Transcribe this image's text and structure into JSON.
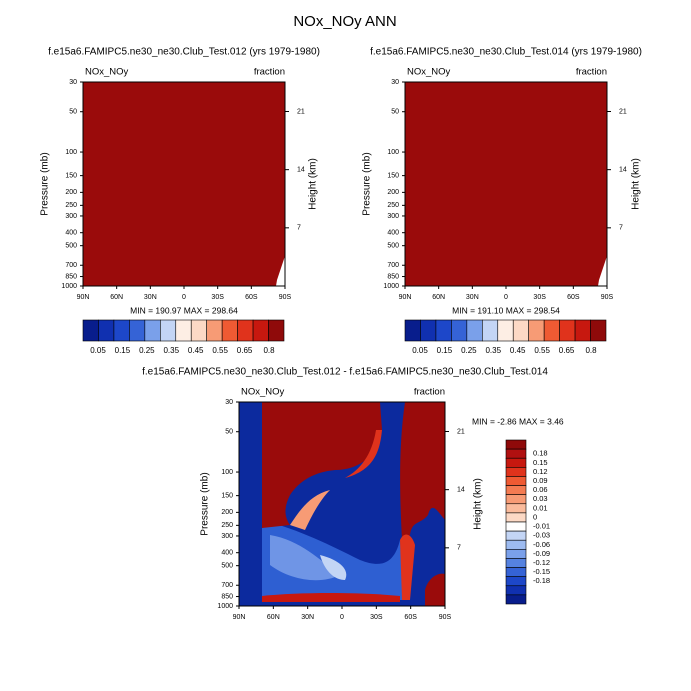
{
  "title": "NOx_NOy ANN",
  "chart_data": [
    {
      "type": "contour",
      "title": "f.e15a6.FAMIPC5.ne30_ne30.Club_Test.012 (yrs 1979-1980)",
      "left_string": "NOx_NOy",
      "right_string": "fraction",
      "ylabel": "Pressure (mb)",
      "y2label": "Height (km)",
      "log_y": true,
      "ylim": [
        1000,
        30
      ],
      "yticks": [
        30,
        50,
        100,
        150,
        200,
        250,
        300,
        400,
        500,
        700,
        850,
        1000
      ],
      "y2lim": [
        0,
        24.55
      ],
      "y2ticks": [
        7,
        14,
        21
      ],
      "xlim": [
        90,
        -90
      ],
      "xticks": [
        {
          "value": 90,
          "label": "90N"
        },
        {
          "value": 60,
          "label": "60N"
        },
        {
          "value": 30,
          "label": "30N"
        },
        0,
        {
          "value": -30,
          "label": "30S"
        },
        {
          "value": -60,
          "label": "60S"
        },
        {
          "value": -90,
          "label": "90S"
        }
      ],
      "min_max_label": "MIN = 190.97  MAX = 298.64",
      "colorbar": "horizontal",
      "colorbar_levels": [
        0.05,
        0.15,
        0.25,
        0.35,
        0.45,
        0.55,
        0.65,
        0.8
      ],
      "colorbar_colors": [
        "#081d8c",
        "#1030b0",
        "#1d47c9",
        "#3563d6",
        "#7aa0ea",
        "#c3d5f5",
        "#fdeee4",
        "#fcd9c5",
        "#f79b75",
        "#ef5a33",
        "#e0331c",
        "#c7180f",
        "#8f0a0a"
      ]
    },
    {
      "type": "contour",
      "title": "f.e15a6.FAMIPC5.ne30_ne30.Club_Test.014 (yrs 1979-1980)",
      "left_string": "NOx_NOy",
      "right_string": "fraction",
      "ylabel": "Pressure (mb)",
      "y2label": "Height (km)",
      "log_y": true,
      "ylim": [
        1000,
        30
      ],
      "yticks": [
        30,
        50,
        100,
        150,
        200,
        250,
        300,
        400,
        500,
        700,
        850,
        1000
      ],
      "y2lim": [
        0,
        24.55
      ],
      "y2ticks": [
        7,
        14,
        21
      ],
      "xlim": [
        90,
        -90
      ],
      "xticks": [
        {
          "value": 90,
          "label": "90N"
        },
        {
          "value": 60,
          "label": "60N"
        },
        {
          "value": 30,
          "label": "30N"
        },
        0,
        {
          "value": -30,
          "label": "30S"
        },
        {
          "value": -60,
          "label": "60S"
        },
        {
          "value": -90,
          "label": "90S"
        }
      ],
      "min_max_label": "MIN = 191.10  MAX = 298.54",
      "colorbar": "horizontal",
      "colorbar_levels": [
        0.05,
        0.15,
        0.25,
        0.35,
        0.45,
        0.55,
        0.65,
        0.8
      ],
      "colorbar_colors": [
        "#081d8c",
        "#1030b0",
        "#1d47c9",
        "#3563d6",
        "#7aa0ea",
        "#c3d5f5",
        "#fdeee4",
        "#fcd9c5",
        "#f79b75",
        "#ef5a33",
        "#e0331c",
        "#c7180f",
        "#8f0a0a"
      ]
    },
    {
      "type": "contour",
      "title": "f.e15a6.FAMIPC5.ne30_ne30.Club_Test.012 - f.e15a6.FAMIPC5.ne30_ne30.Club_Test.014",
      "left_string": "NOx_NOy",
      "right_string": "fraction",
      "ylabel": "Pressure (mb)",
      "y2label": "Height (km)",
      "log_y": true,
      "ylim": [
        1000,
        30
      ],
      "yticks": [
        30,
        50,
        100,
        150,
        200,
        250,
        300,
        400,
        500,
        700,
        850,
        1000
      ],
      "y2lim": [
        0,
        24.55
      ],
      "y2ticks": [
        7,
        14,
        21
      ],
      "xlim": [
        90,
        -90
      ],
      "xticks": [
        {
          "value": 90,
          "label": "90N"
        },
        {
          "value": 60,
          "label": "60N"
        },
        {
          "value": 30,
          "label": "30N"
        },
        0,
        {
          "value": -30,
          "label": "30S"
        },
        {
          "value": -60,
          "label": "60S"
        },
        {
          "value": -90,
          "label": "90S"
        }
      ],
      "min_max_label": "MIN = -2.86  MAX =  3.46",
      "colorbar": "vertical",
      "colorbar_levels": [
        0.18,
        0.15,
        0.12,
        0.09,
        0.06,
        0.03,
        0.01,
        0,
        -0.01,
        -0.03,
        -0.06,
        -0.09,
        -0.12,
        -0.15,
        -0.18
      ],
      "colorbar_colors": [
        "#8f0a0a",
        "#b01010",
        "#c7180f",
        "#e0331c",
        "#ef5a33",
        "#f47b52",
        "#f79b75",
        "#fabb9c",
        "#fcd9c5",
        "#ffffff",
        "#c3d5f5",
        "#9dbbf0",
        "#7aa0ea",
        "#5582e0",
        "#3563d6",
        "#1d47c9",
        "#1030b0",
        "#081d8c"
      ]
    }
  ]
}
